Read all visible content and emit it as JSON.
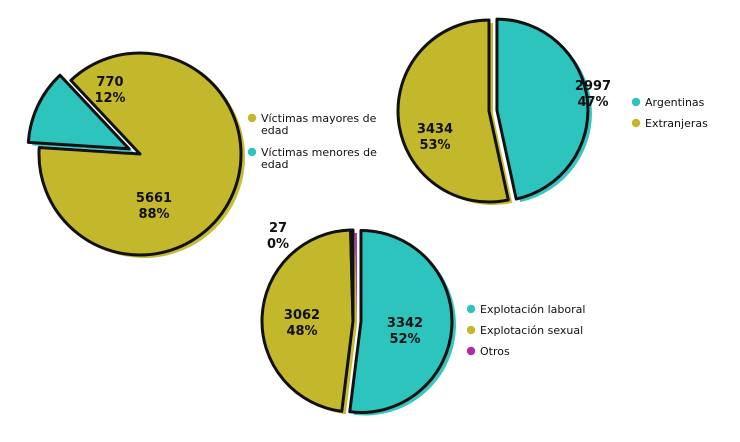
{
  "chart_data": [
    {
      "type": "pie",
      "categories": [
        "Víctimas mayores de edad",
        "Víctimas menores de edad"
      ],
      "values": [
        5661,
        770
      ],
      "percent_labels": [
        "88%",
        "12%"
      ],
      "colors": [
        "#c3b82c",
        "#2cc4bd"
      ],
      "exploded": [
        false,
        true
      ],
      "legend_placement": "right",
      "legend_lines": [
        [
          "Víctimas mayores de",
          "edad"
        ],
        [
          "Víctimas menores de",
          "edad"
        ]
      ]
    },
    {
      "type": "pie",
      "categories": [
        "Argentinas",
        "Extranjeras"
      ],
      "values": [
        2997,
        3434
      ],
      "percent_labels": [
        "47%",
        "53%"
      ],
      "colors": [
        "#2cc4bd",
        "#c3b82c"
      ],
      "exploded": [
        true,
        false
      ],
      "legend_placement": "right",
      "legend_lines": [
        [
          "Argentinas"
        ],
        [
          "Extranjeras"
        ]
      ]
    },
    {
      "type": "pie",
      "categories": [
        "Explotación laboral",
        "Explotación sexual",
        "Otros"
      ],
      "values": [
        3342,
        3062,
        27
      ],
      "percent_labels": [
        "52%",
        "48%",
        "0%"
      ],
      "colors": [
        "#2cc4bd",
        "#c3b82c",
        "#b02ca8"
      ],
      "exploded": [
        true,
        false,
        false
      ],
      "legend_placement": "right",
      "legend_lines": [
        [
          "Explotación laboral"
        ],
        [
          "Explotación sexual"
        ],
        [
          "Otros"
        ]
      ]
    }
  ]
}
